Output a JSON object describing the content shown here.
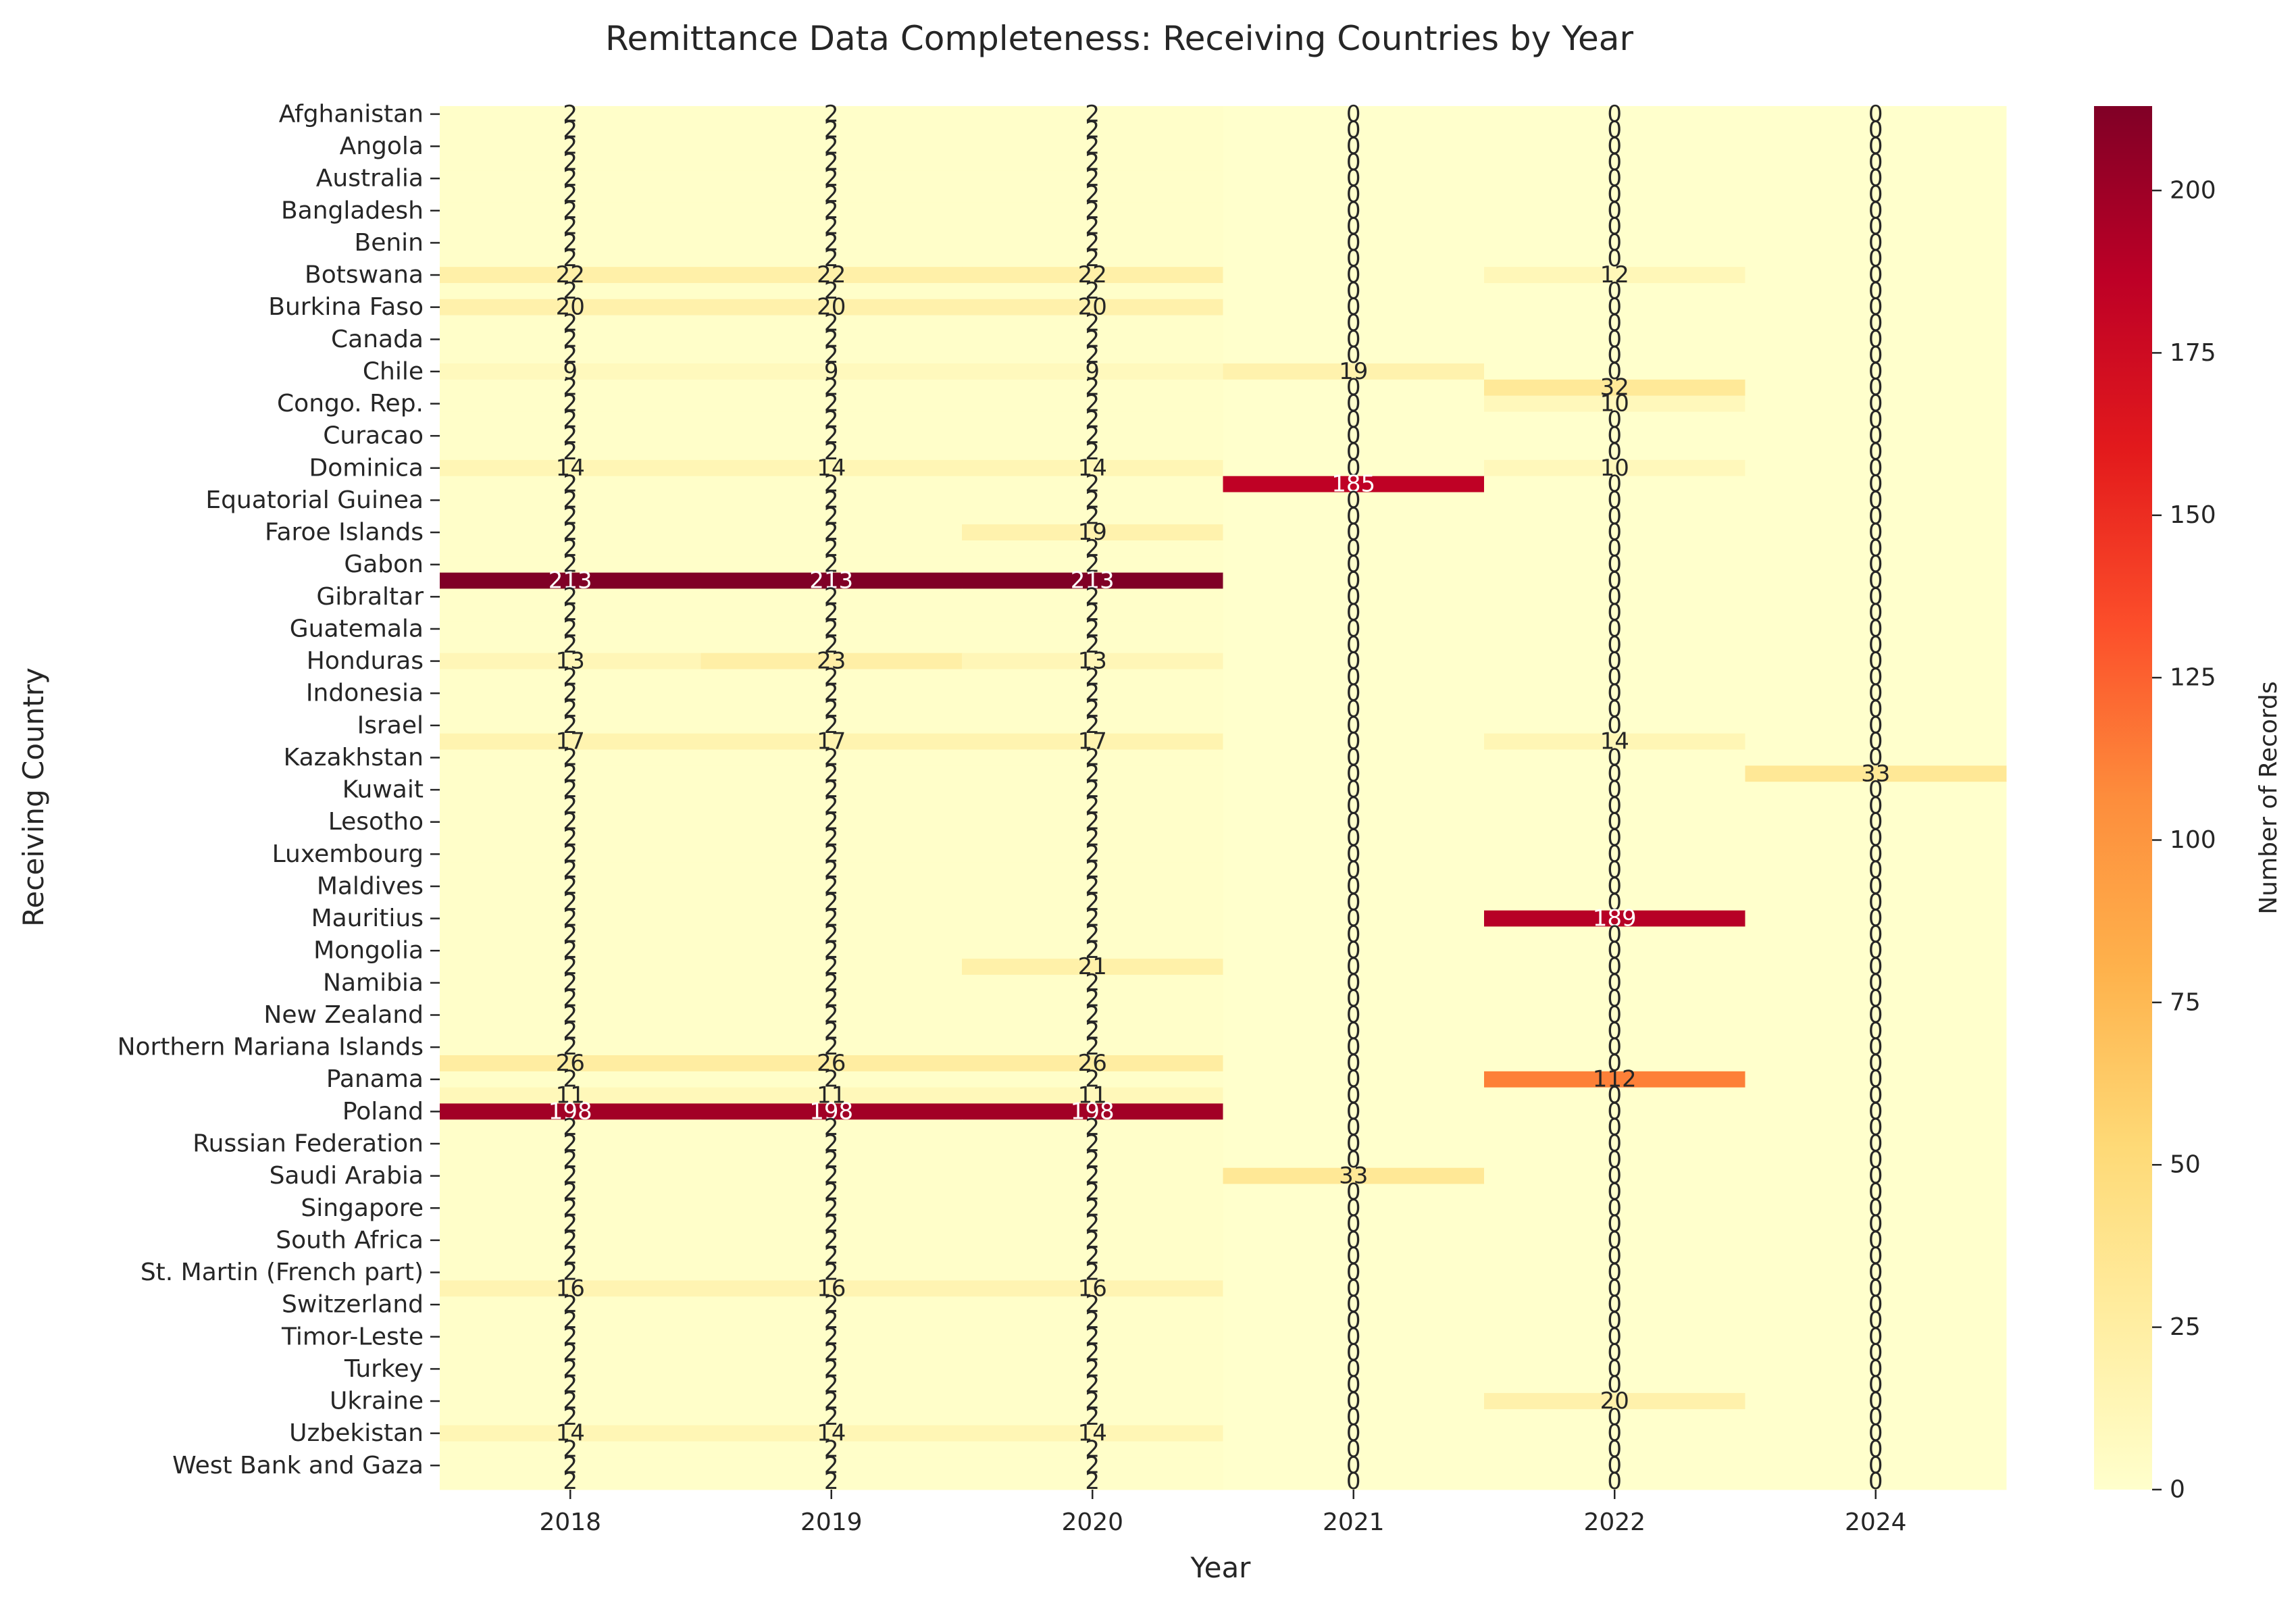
{
  "chart_data": {
    "type": "heatmap",
    "title": "Remittance Data Completeness: Receiving Countries by Year",
    "xlabel": "Year",
    "ylabel": "Receiving Country",
    "colorbar_label": "Number of Records",
    "colorbar_ticks": [
      0,
      25,
      50,
      75,
      100,
      125,
      150,
      175,
      200
    ],
    "color_range": [
      0,
      213
    ],
    "colormap": [
      "#ffffcc",
      "#ffeda0",
      "#fed976",
      "#feb24c",
      "#fd8d3c",
      "#fc4e2a",
      "#e31a1c",
      "#bd0026",
      "#800026"
    ],
    "years": [
      "2018",
      "2019",
      "2020",
      "2021",
      "2022",
      "2024"
    ],
    "rows_count": 86,
    "default_values": [
      2,
      2,
      2,
      0,
      0,
      0
    ],
    "y_tick_labels": [
      {
        "row": 0,
        "label": "Afghanistan"
      },
      {
        "row": 2,
        "label": "Angola"
      },
      {
        "row": 4,
        "label": "Australia"
      },
      {
        "row": 6,
        "label": "Bangladesh"
      },
      {
        "row": 8,
        "label": "Benin"
      },
      {
        "row": 10,
        "label": "Botswana"
      },
      {
        "row": 12,
        "label": "Burkina Faso"
      },
      {
        "row": 14,
        "label": "Canada"
      },
      {
        "row": 16,
        "label": "Chile"
      },
      {
        "row": 18,
        "label": "Congo. Rep."
      },
      {
        "row": 20,
        "label": "Curacao"
      },
      {
        "row": 22,
        "label": "Dominica"
      },
      {
        "row": 24,
        "label": "Equatorial Guinea"
      },
      {
        "row": 26,
        "label": "Faroe Islands"
      },
      {
        "row": 28,
        "label": "Gabon"
      },
      {
        "row": 30,
        "label": "Gibraltar"
      },
      {
        "row": 32,
        "label": "Guatemala"
      },
      {
        "row": 34,
        "label": "Honduras"
      },
      {
        "row": 36,
        "label": "Indonesia"
      },
      {
        "row": 38,
        "label": "Israel"
      },
      {
        "row": 40,
        "label": "Kazakhstan"
      },
      {
        "row": 42,
        "label": "Kuwait"
      },
      {
        "row": 44,
        "label": "Lesotho"
      },
      {
        "row": 46,
        "label": "Luxembourg"
      },
      {
        "row": 48,
        "label": "Maldives"
      },
      {
        "row": 50,
        "label": "Mauritius"
      },
      {
        "row": 52,
        "label": "Mongolia"
      },
      {
        "row": 54,
        "label": "Namibia"
      },
      {
        "row": 56,
        "label": "New Zealand"
      },
      {
        "row": 58,
        "label": "Northern Mariana Islands"
      },
      {
        "row": 60,
        "label": "Panama"
      },
      {
        "row": 62,
        "label": "Poland"
      },
      {
        "row": 64,
        "label": "Russian Federation"
      },
      {
        "row": 66,
        "label": "Saudi Arabia"
      },
      {
        "row": 68,
        "label": "Singapore"
      },
      {
        "row": 70,
        "label": "South Africa"
      },
      {
        "row": 72,
        "label": "St. Martin (French part)"
      },
      {
        "row": 74,
        "label": "Switzerland"
      },
      {
        "row": 76,
        "label": "Timor-Leste"
      },
      {
        "row": 78,
        "label": "Turkey"
      },
      {
        "row": 80,
        "label": "Ukraine"
      },
      {
        "row": 82,
        "label": "Uzbekistan"
      },
      {
        "row": 84,
        "label": "West Bank and Gaza"
      }
    ],
    "highlighted_cells": [
      {
        "row": 10,
        "values": [
          22,
          22,
          22,
          0,
          12,
          0
        ]
      },
      {
        "row": 12,
        "values": [
          20,
          20,
          20,
          0,
          0,
          0
        ]
      },
      {
        "row": 16,
        "values": [
          9,
          9,
          9,
          19,
          0,
          0
        ]
      },
      {
        "row": 17,
        "values": [
          2,
          2,
          2,
          0,
          32,
          0
        ]
      },
      {
        "row": 18,
        "values": [
          2,
          2,
          2,
          0,
          10,
          0
        ]
      },
      {
        "row": 22,
        "values": [
          14,
          14,
          14,
          0,
          10,
          0
        ]
      },
      {
        "row": 23,
        "values": [
          2,
          2,
          2,
          185,
          0,
          0
        ]
      },
      {
        "row": 26,
        "values": [
          2,
          2,
          19,
          0,
          0,
          0
        ]
      },
      {
        "row": 29,
        "values": [
          213,
          213,
          213,
          0,
          0,
          0
        ]
      },
      {
        "row": 34,
        "values": [
          13,
          23,
          13,
          0,
          0,
          0
        ]
      },
      {
        "row": 39,
        "values": [
          17,
          17,
          17,
          0,
          14,
          0
        ]
      },
      {
        "row": 41,
        "values": [
          2,
          2,
          2,
          0,
          0,
          33
        ]
      },
      {
        "row": 50,
        "values": [
          2,
          2,
          2,
          0,
          189,
          0
        ]
      },
      {
        "row": 53,
        "values": [
          2,
          2,
          21,
          0,
          0,
          0
        ]
      },
      {
        "row": 59,
        "values": [
          26,
          26,
          26,
          0,
          0,
          0
        ]
      },
      {
        "row": 60,
        "values": [
          2,
          2,
          2,
          0,
          112,
          0
        ]
      },
      {
        "row": 61,
        "values": [
          11,
          11,
          11,
          0,
          0,
          0
        ]
      },
      {
        "row": 62,
        "values": [
          198,
          198,
          198,
          0,
          0,
          0
        ]
      },
      {
        "row": 66,
        "values": [
          2,
          2,
          2,
          33,
          0,
          0
        ]
      },
      {
        "row": 73,
        "values": [
          16,
          16,
          16,
          0,
          0,
          0
        ]
      },
      {
        "row": 80,
        "values": [
          2,
          2,
          2,
          0,
          20,
          0
        ]
      },
      {
        "row": 82,
        "values": [
          14,
          14,
          14,
          0,
          0,
          0
        ]
      }
    ]
  }
}
